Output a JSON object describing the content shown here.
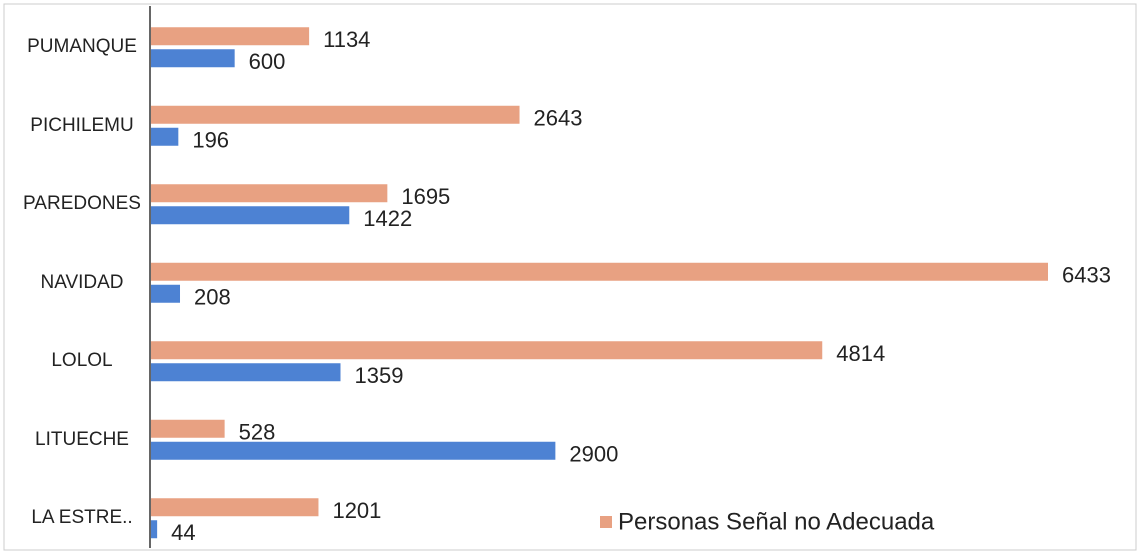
{
  "chart_data": {
    "type": "hbar",
    "categories": [
      "PUMANQUE",
      "PICHILEMU",
      "PAREDONES",
      "NAVIDAD",
      "LOLOL",
      "LITUECHE",
      "LA ESTRE.."
    ],
    "series": [
      {
        "name": "Personas Señal no Adecuada",
        "color": "#e8a182",
        "values": [
          1134,
          2643,
          1695,
          6433,
          4814,
          528,
          1201
        ]
      },
      {
        "color": "#4d82d3",
        "values": [
          600,
          196,
          1422,
          208,
          1359,
          2900,
          44
        ]
      }
    ],
    "legend": "bottom-right"
  }
}
